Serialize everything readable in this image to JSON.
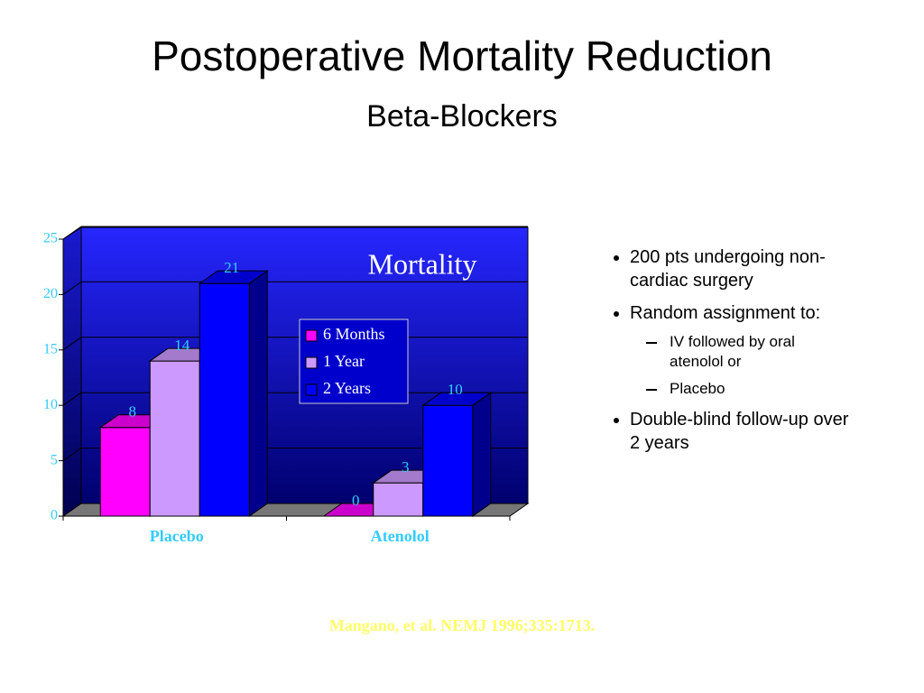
{
  "slide": {
    "title": "Postoperative Mortality Reduction",
    "subtitle": "Beta-Blockers",
    "bullets": [
      {
        "text": "200 pts undergoing non-cardiac surgery"
      },
      {
        "text": "Random assignment to:",
        "subbullets": [
          "IV followed by oral atenolol or",
          "Placebo"
        ]
      },
      {
        "text": "Double-blind follow-up over 2 years"
      }
    ],
    "citation": "Mangano, et al. NEMJ 1996;335:1713."
  },
  "chart_data": {
    "type": "bar3d",
    "title": "Mortality",
    "categories": [
      "Placebo",
      "Atenolol"
    ],
    "series": [
      {
        "name": "6 Months",
        "color": "#ff00ff",
        "values": [
          8,
          0
        ]
      },
      {
        "name": "1 Year",
        "color": "#cc99ff",
        "values": [
          14,
          3
        ]
      },
      {
        "name": "2 Years",
        "color": "#0000ff",
        "values": [
          21,
          10
        ]
      }
    ],
    "ylim": [
      0,
      25
    ],
    "yticks": [
      0,
      5,
      10,
      15,
      20,
      25
    ],
    "grid": true
  }
}
